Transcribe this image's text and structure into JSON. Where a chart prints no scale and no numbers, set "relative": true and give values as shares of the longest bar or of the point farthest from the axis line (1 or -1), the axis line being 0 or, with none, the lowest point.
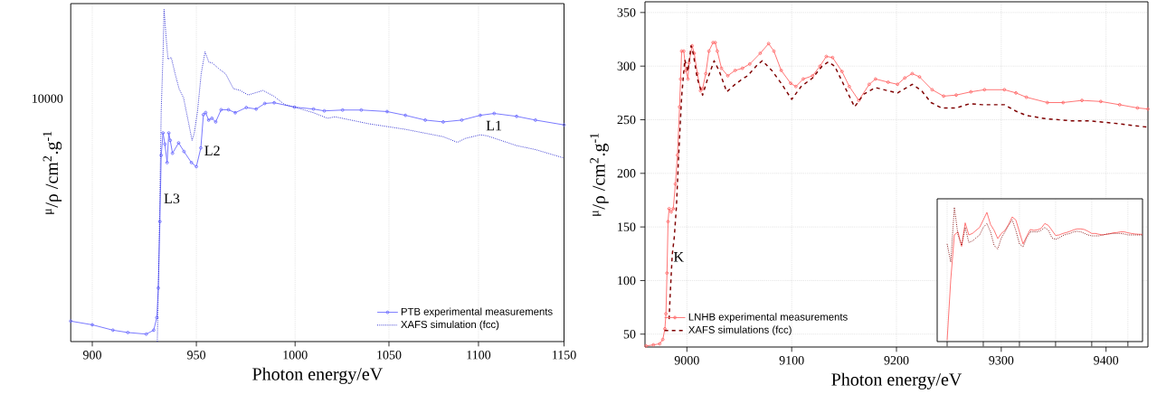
{
  "chart_data": [
    {
      "type": "line",
      "relative": true,
      "xlabel": "Photon energy/eV",
      "ylabel": "$^{μ}$/ρ /cm$^{2}$.g$^{-1}$",
      "log": "x",
      "grid": "x",
      "legend": "bottom right",
      "xlim": [
        890,
        1150
      ],
      "xticks": [
        900,
        950,
        1000,
        1050,
        1100,
        1150
      ],
      "annotations": [
        "L3",
        "L2",
        "L1",
        "10000"
      ],
      "series": [
        {
          "name": "PTB experimental measurements",
          "color": "#6f6fff",
          "marker": "circle",
          "line_style": "solid",
          "x": [
            890,
            900,
            909.7,
            916.8,
            925.6,
            929.2,
            930.7,
            931.4,
            932.2,
            932.8,
            933.7,
            934.6,
            935.7,
            936.5,
            937.2,
            938.3,
            941.3,
            943.9,
            947.6,
            950,
            952.2,
            953.5,
            954.6,
            956.1,
            957.7,
            959.6,
            962.3,
            966,
            969.4,
            975,
            980,
            984.4,
            989.2,
            999.7,
            1009.6,
            1015.3,
            1025,
            1035,
            1049,
            1059,
            1070,
            1080,
            1090.5,
            1101,
            1109,
            1122,
            1133,
            1150
          ],
          "values": [
            0.0616,
            0.0505,
            0.0344,
            0.0273,
            0.0225,
            0.0344,
            0.0724,
            0.1613,
            0.3612,
            0.5608,
            0.6278,
            0.5941,
            0.5386,
            0.6278,
            0.6055,
            0.5668,
            0.5979,
            0.572,
            0.5386,
            0.5264,
            0.5829,
            0.683,
            0.6891,
            0.6665,
            0.672,
            0.661,
            0.6976,
            0.6976,
            0.6887,
            0.7043,
            0.6997,
            0.7165,
            0.7188,
            0.7055,
            0.6997,
            0.6942,
            0.6968,
            0.6968,
            0.6921,
            0.6809,
            0.6665,
            0.661,
            0.6665,
            0.6809,
            0.6865,
            0.6778,
            0.6665,
            0.6521
          ]
        },
        {
          "name": "XAFS simulation (fcc)",
          "color": "#1a1acc",
          "marker": "none",
          "line_style": "dotted",
          "x": [
            930.9,
            931.7,
            932.8,
            933.7,
            934.2,
            935.2,
            936.1,
            937.7,
            939.6,
            941.5,
            943.7,
            946.1,
            947.9,
            949,
            950.6,
            952.4,
            954.3,
            956.2,
            958,
            961,
            964.6,
            968.5,
            972,
            975.9,
            983.5,
            989,
            994.6,
            999.7,
            1009.6,
            1017,
            1021,
            1039,
            1059,
            1080,
            1088,
            1092.5,
            1101,
            1105,
            1122,
            1133,
            1150
          ],
          "values": [
            0,
            0.25,
            0.6942,
            0.8609,
            1,
            0.9163,
            0.85,
            0.8548,
            0.8054,
            0.761,
            0.7333,
            0.661,
            0.6055,
            0.6278,
            0.6942,
            0.8054,
            0.872,
            0.8409,
            0.838,
            0.8219,
            0.8054,
            0.761,
            0.7556,
            0.742,
            0.7556,
            0.7386,
            0.7133,
            0.7055,
            0.6887,
            0.672,
            0.6764,
            0.6555,
            0.6387,
            0.6165,
            0.5996,
            0.6113,
            0.6222,
            0.6191,
            0.5897,
            0.5778,
            0.5523
          ]
        }
      ]
    },
    {
      "type": "line",
      "xlabel": "Photon energy/eV",
      "ylabel": "$^{μ}$/ρ /cm$^{2}$.g$^{-1}$",
      "grid": true,
      "legend": "bottom left",
      "xlim": [
        8960,
        9440
      ],
      "ylim": [
        38,
        360
      ],
      "xticks": [
        9000,
        9100,
        9200,
        9300,
        9400
      ],
      "yticks": [
        50,
        100,
        150,
        200,
        250,
        300,
        350
      ],
      "annotations": [
        "K"
      ],
      "series": [
        {
          "name": "LNHB experimental measurements",
          "color": "#ff6b6b",
          "marker": "circle",
          "line_style": "solid",
          "x": [
            8961,
            8968,
            8974,
            8977,
            8979,
            8980,
            8981,
            8982,
            8983,
            8985,
            8987,
            8989,
            8991,
            8993,
            8994,
            8995,
            8997,
            8999,
            9001,
            9002,
            9005,
            9007,
            9010,
            9013,
            9015,
            9018,
            9021,
            9025,
            9027,
            9029,
            9033,
            9039,
            9046,
            9053,
            9060,
            9070,
            9078,
            9083,
            9090,
            9099,
            9104,
            9111,
            9120,
            9127,
            9133,
            9139,
            9148,
            9155,
            9164,
            9174,
            9180,
            9192,
            9201,
            9208,
            9215,
            9222,
            9234,
            9245,
            9257,
            9271,
            9284,
            9303,
            9314,
            9324,
            9344,
            9359,
            9377,
            9395,
            9413,
            9430,
            9440
          ],
          "values": [
            39,
            40,
            41,
            45,
            55,
            69,
            107,
            155,
            167,
            164,
            167,
            190,
            217,
            262,
            288,
            314,
            314,
            296,
            288,
            303,
            319,
            312,
            293,
            277,
            279,
            293,
            314,
            322,
            322,
            314,
            298,
            291,
            296,
            298,
            302,
            312,
            321,
            314,
            296,
            284,
            281,
            288,
            291,
            300,
            309,
            308,
            295,
            281,
            268,
            283,
            288,
            285,
            283,
            289,
            293,
            290,
            278,
            272,
            273,
            276,
            278,
            278,
            275,
            271,
            266,
            266,
            268,
            267,
            264,
            261,
            260
          ]
        },
        {
          "name": "XAFS simulations (fcc)",
          "color": "#7f0000",
          "marker": "none",
          "line_style": "dashed",
          "x": [
            8983,
            8984,
            8986,
            8988,
            8990,
            8992,
            8995,
            8998,
            9001,
            9004,
            9006,
            9010,
            9015,
            9020,
            9026,
            9031,
            9038,
            9046,
            9053,
            9058,
            9067,
            9072,
            9081,
            9090,
            9100,
            9109,
            9120,
            9129,
            9135,
            9141,
            9150,
            9160,
            9169,
            9180,
            9192,
            9201,
            9208,
            9215,
            9224,
            9233,
            9243,
            9257,
            9270,
            9282,
            9303,
            9314,
            9324,
            9342,
            9367,
            9384,
            9405,
            9423,
            9440
          ],
          "values": [
            64,
            86,
            124,
            141,
            169,
            214,
            272,
            306,
            295,
            319,
            312,
            288,
            273,
            289,
            305,
            295,
            276,
            283,
            288,
            291,
            301,
            305,
            296,
            284,
            269,
            281,
            289,
            300,
            304,
            300,
            282,
            262,
            274,
            280,
            277,
            275,
            279,
            283,
            277,
            266,
            261,
            261,
            265,
            264,
            264,
            258,
            254,
            251,
            249,
            249,
            247,
            245,
            243
          ]
        }
      ]
    },
    {
      "type": "line",
      "relative": true,
      "grid": true,
      "tick_labels": false,
      "categories": [
        null,
        null,
        null,
        null,
        null,
        null,
        null,
        null,
        null,
        null,
        null,
        null,
        null,
        null,
        null,
        null,
        null,
        null,
        null,
        null,
        null,
        null,
        null,
        null,
        null,
        null,
        null,
        null,
        null,
        null,
        null,
        null,
        null,
        null,
        null,
        null,
        null,
        null,
        null,
        null,
        null,
        null,
        null,
        null,
        null,
        null,
        null,
        null,
        null,
        null,
        null,
        null,
        null,
        null,
        null
      ],
      "series": [
        {
          "color": "#ff6b6b",
          "marker": "none",
          "line_style": "solid",
          "values": [
            0.01,
            0.459,
            0.794,
            0.817,
            0.709,
            0.884,
            0.794,
            0.805,
            0.828,
            0.85,
            0.906,
            0.962,
            0.872,
            0.828,
            0.767,
            0.805,
            0.828,
            0.872,
            0.928,
            0.906,
            0.817,
            0.727,
            0.783,
            0.834,
            0.828,
            0.832,
            0.843,
            0.879,
            0.865,
            0.828,
            0.79,
            0.794,
            0.805,
            0.812,
            0.821,
            0.832,
            0.839,
            0.839,
            0.834,
            0.821,
            0.805,
            0.805,
            0.799,
            0.794,
            0.799,
            0.803,
            0.81,
            0.812,
            0.817,
            0.817,
            0.81,
            0.805,
            0.801,
            0.799,
            0.799
          ]
        },
        {
          "color": "#7f0000",
          "marker": "none",
          "line_style": "dotted",
          "values": [
            0.727,
            0.593,
            1,
            0.794,
            0.716,
            0.85,
            0.738,
            0.749,
            0.772,
            0.794,
            0.85,
            0.879,
            0.817,
            0.716,
            0.689,
            0.772,
            0.817,
            0.866,
            0.906,
            0.828,
            0.727,
            0.705,
            0.772,
            0.817,
            0.817,
            0.817,
            0.828,
            0.85,
            0.828,
            0.772,
            0.761,
            0.772,
            0.79,
            0.799,
            0.805,
            0.817,
            0.821,
            0.817,
            0.805,
            0.794,
            0.787,
            0.787,
            0.787,
            0.794,
            0.799,
            0.803,
            0.805,
            0.805,
            0.805,
            0.801,
            0.794,
            0.794,
            0.794,
            0.794,
            0.794
          ]
        }
      ]
    }
  ]
}
